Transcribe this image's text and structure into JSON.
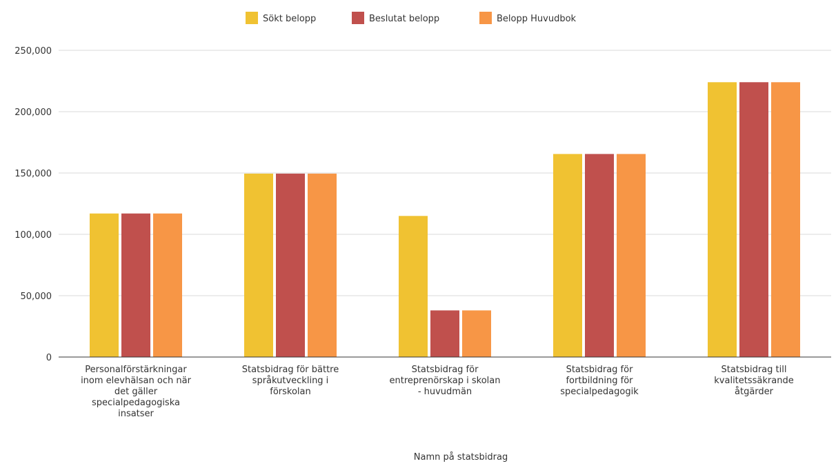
{
  "chart_data": {
    "type": "bar",
    "title": "",
    "xlabel": "Namn på statsbidrag",
    "ylabel": "",
    "ylim": [
      0,
      250000
    ],
    "yticks": [
      0,
      50000,
      100000,
      150000,
      200000,
      250000
    ],
    "ytick_labels": [
      "0",
      "50,000",
      "100,000",
      "150,000",
      "200,000",
      "250,000"
    ],
    "grid": true,
    "legend_position": "top",
    "categories": [
      [
        "Personalförstärkningar",
        "inom elevhälsan och när",
        "det gäller",
        "specialpedagogiska",
        "insatser"
      ],
      [
        "Statsbidrag för bättre",
        "språkutveckling i",
        "förskolan"
      ],
      [
        "Statsbidrag för",
        "entreprenörskap i skolan",
        "- huvudmän"
      ],
      [
        "Statsbidrag för",
        "fortbildning för",
        "specialpedagogik"
      ],
      [
        "Statsbidrag till",
        "kvalitetssäkrande",
        "åtgärder"
      ]
    ],
    "series": [
      {
        "name": "Sökt belopp",
        "color": "#F0C232",
        "values": [
          117000,
          149500,
          115000,
          165500,
          224000
        ]
      },
      {
        "name": "Beslutat belopp",
        "color": "#C0504D",
        "values": [
          117000,
          149500,
          38000,
          165500,
          224000
        ]
      },
      {
        "name": "Belopp Huvudbok",
        "color": "#F79646",
        "values": [
          117000,
          149500,
          38000,
          165500,
          224000
        ]
      }
    ]
  }
}
